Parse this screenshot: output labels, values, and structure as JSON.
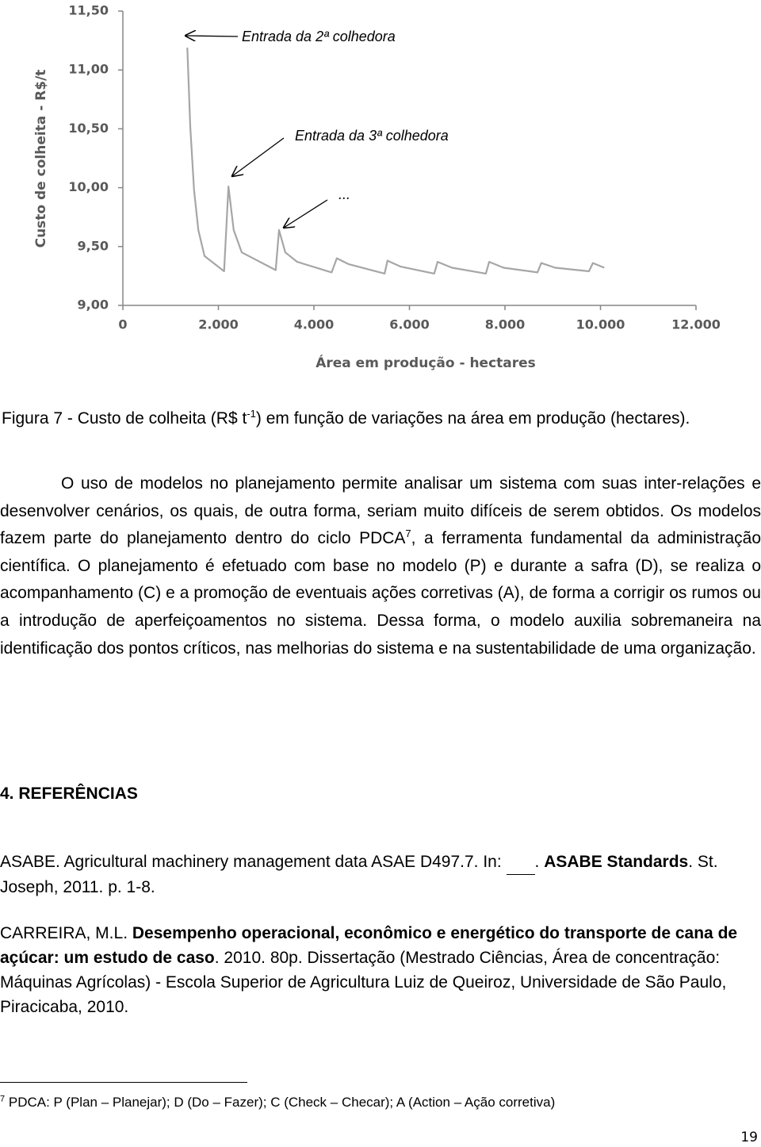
{
  "chart_data": {
    "type": "line",
    "y_axis_title": "Custo de colheita  - R$/t",
    "x_axis_title": "Área em produção - hectares",
    "annotations": [
      "Entrada da 2ª colhedora",
      "Entrada da 3ª colhedora",
      "..."
    ],
    "x": [
      1350,
      1410,
      1490,
      1580,
      1710,
      2120,
      2210,
      2320,
      2490,
      3200,
      3270,
      3400,
      3650,
      4370,
      4480,
      4730,
      5480,
      5540,
      5810,
      6520,
      6590,
      6890,
      7600,
      7670,
      7970,
      8680,
      8760,
      9050,
      9760,
      9840,
      10080
    ],
    "values": [
      11.19,
      10.52,
      9.98,
      9.64,
      9.42,
      9.29,
      10.01,
      9.64,
      9.45,
      9.3,
      9.64,
      9.45,
      9.37,
      9.28,
      9.4,
      9.35,
      9.27,
      9.38,
      9.33,
      9.27,
      9.37,
      9.32,
      9.27,
      9.37,
      9.32,
      9.28,
      9.36,
      9.32,
      9.29,
      9.36,
      9.32
    ],
    "color": "#a6a6a6",
    "xlim": [
      0,
      12000
    ],
    "xticks": [
      0,
      {
        "value": 2000,
        "label": "2.000"
      },
      {
        "value": 4000,
        "label": "4.000"
      },
      {
        "value": 6000,
        "label": "6.000"
      },
      {
        "value": 8000,
        "label": "8.000"
      },
      {
        "value": 10000,
        "label": "10.000"
      },
      {
        "value": 12000,
        "label": "12.000"
      }
    ],
    "ylim": [
      9,
      11.5
    ],
    "yticks": [
      {
        "value": 9,
        "label": "9,00"
      },
      {
        "value": 9.5,
        "label": "9,50"
      },
      {
        "value": 10,
        "label": "10,00"
      },
      {
        "value": 10.5,
        "label": "10,50"
      },
      {
        "value": 11,
        "label": "11,00"
      },
      {
        "value": 11.5,
        "label": "11,50"
      }
    ],
    "grid": false
  },
  "caption": {
    "before": "Figura 7 - Custo de colheita (R$ t",
    "superscript": "-1",
    "after": ") em função de variações na área em produção (hectares)."
  },
  "paragraph": {
    "before": "O uso de modelos no planejamento permite analisar um sistema com suas inter-relações e desenvolver cenários, os quais, de outra forma, seriam muito difíceis de serem obtidos. Os modelos fazem parte do planejamento dentro do ciclo PDCA",
    "footnote_ref": "7",
    "after": ", a ferramenta fundamental da administração científica. O planejamento é efetuado com base no modelo (P) e durante a safra (D),  se realiza o acompanhamento (C) e a promoção de eventuais ações corretivas (A), de forma a corrigir os rumos ou a introdução de aperfeiçoamentos no sistema. Dessa forma, o modelo auxilia sobremaneira na identificação dos pontos críticos, nas melhorias do sistema e na sustentabilidade de uma organização."
  },
  "section_heading": "4. REFERÊNCIAS",
  "references": [
    {
      "before": "ASABE. Agricultural machinery management data ASAE D497.7. In: ",
      "after_blank": ". ",
      "bold": "ASABE Standards",
      "rest": ". St. Joseph, 2011. p. 1-8."
    },
    {
      "before": "CARREIRA, M.L. ",
      "bold": "Desempenho operacional, econômico e energético do transporte de cana de açúcar: um estudo de caso",
      "rest": ". 2010. 80p. Dissertação (Mestrado Ciências, Área de concentração: Máquinas Agrícolas) - Escola Superior de Agricultura Luiz de Queiroz, Universidade de São Paulo, Piracicaba, 2010."
    }
  ],
  "footnote": {
    "number": "7",
    "text": "PDCA: P (Plan – Planejar); D (Do – Fazer); C (Check – Checar); A (Action – Ação corretiva)"
  },
  "page_number": "19"
}
